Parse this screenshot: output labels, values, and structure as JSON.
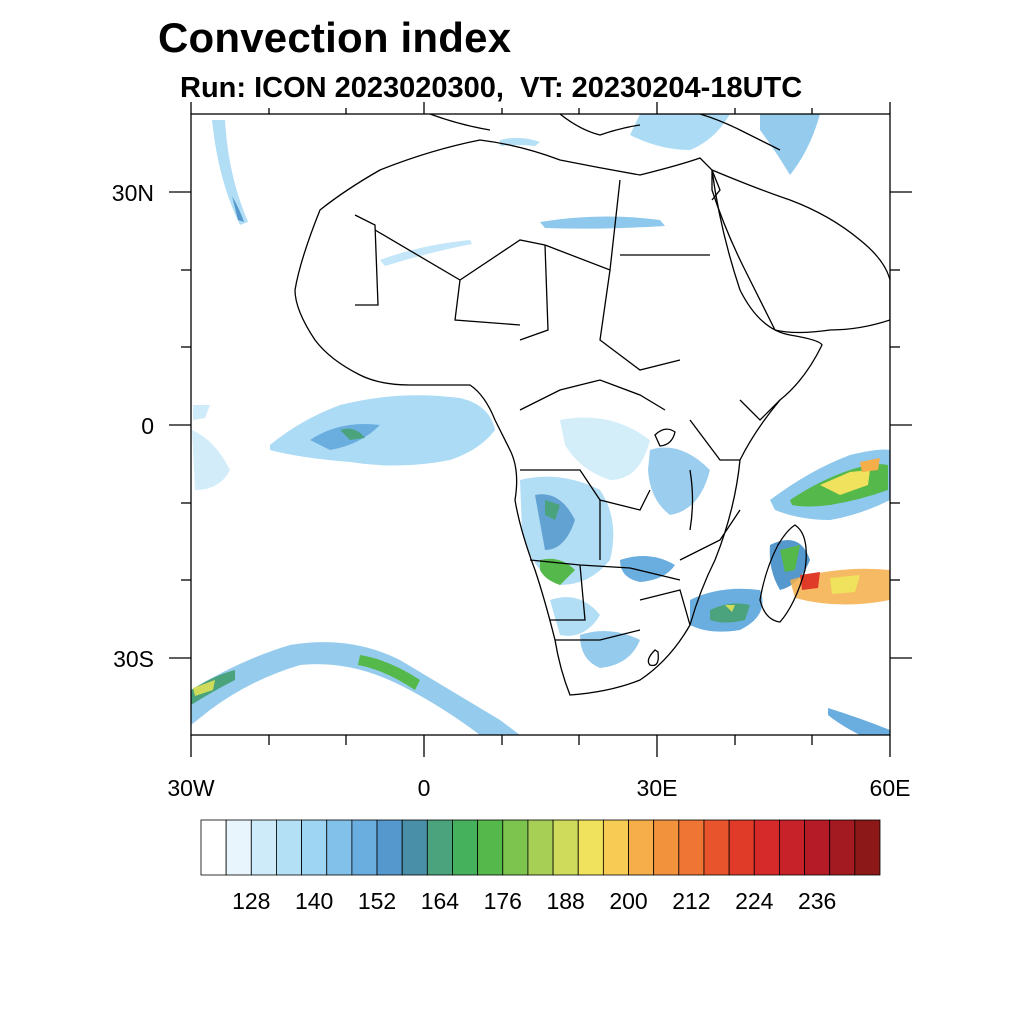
{
  "title": "Convection index",
  "subtitle": "Run: ICON 2023020300,  VT: 20230204-18UTC",
  "lat_labels": [
    "30N",
    "0",
    "30S"
  ],
  "lon_labels": [
    "30W",
    "0",
    "30E",
    "60E"
  ],
  "colorbar": {
    "tick_labels": [
      "128",
      "140",
      "152",
      "164",
      "176",
      "188",
      "200",
      "212",
      "224",
      "236"
    ],
    "colors": [
      "#ffffff",
      "#e8f5fc",
      "#cdebf8",
      "#b4e0f6",
      "#9dd5f3",
      "#82c2ea",
      "#6aaee0",
      "#5598cd",
      "#4a8fa8",
      "#4aa37d",
      "#46b15c",
      "#55b84a",
      "#7dc44e",
      "#a8cf55",
      "#cfdb5a",
      "#f0e25c",
      "#f8cb55",
      "#f5ae49",
      "#f3923d",
      "#ee7533",
      "#e8552c",
      "#e03b29",
      "#d52a29",
      "#c7212a",
      "#b51b27",
      "#a31a20",
      "#8c1818"
    ]
  }
}
